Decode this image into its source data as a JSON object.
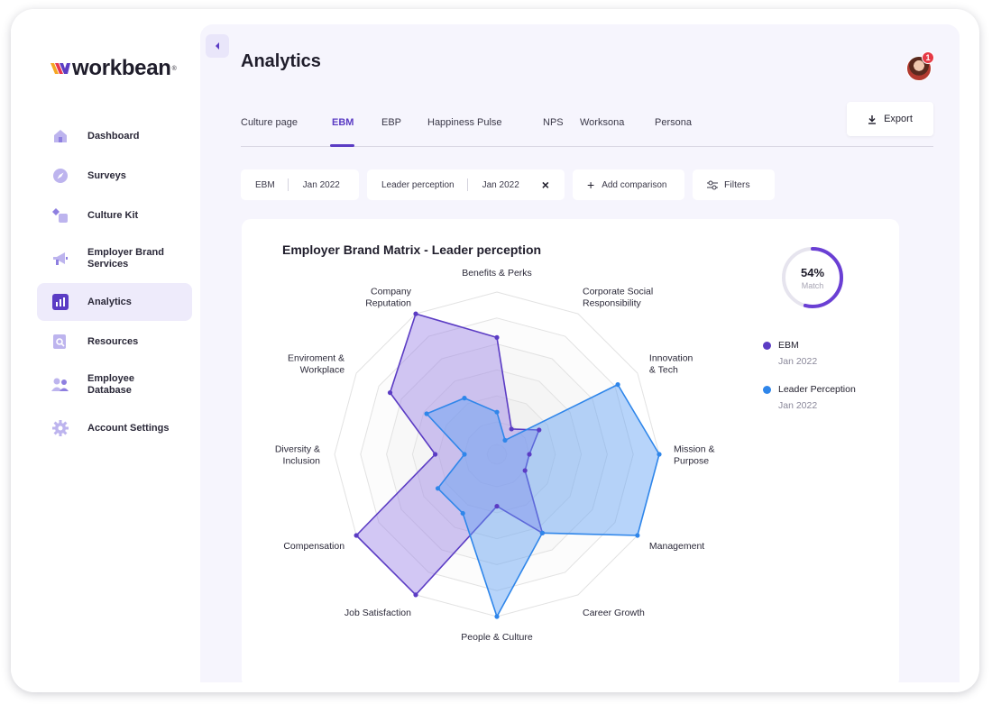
{
  "brand": {
    "name": "workbean",
    "reg": "®"
  },
  "sidebar": {
    "items": [
      {
        "label": "Dashboard",
        "icon": "home-icon",
        "active": false
      },
      {
        "label": "Surveys",
        "icon": "compass-icon",
        "active": false
      },
      {
        "label": "Culture Kit",
        "icon": "shapes-icon",
        "active": false
      },
      {
        "label": "Employer Brand Services",
        "icon": "megaphone-icon",
        "active": false
      },
      {
        "label": "Analytics",
        "icon": "chart-icon",
        "active": true
      },
      {
        "label": "Resources",
        "icon": "document-search-icon",
        "active": false
      },
      {
        "label": "Employee Database",
        "icon": "users-icon",
        "active": false
      },
      {
        "label": "Account Settings",
        "icon": "gear-icon",
        "active": false
      }
    ]
  },
  "header": {
    "title": "Analytics",
    "notification_count": "1",
    "export_label": "Export"
  },
  "tabs": [
    {
      "label": "Culture page",
      "active": false
    },
    {
      "label": "EBM",
      "active": true
    },
    {
      "label": "EBP",
      "active": false
    },
    {
      "label": "Happiness Pulse",
      "active": false
    },
    {
      "label": "NPS",
      "active": false
    },
    {
      "label": "Worksona",
      "active": false
    },
    {
      "label": "Persona",
      "active": false
    }
  ],
  "filters": {
    "chip1": {
      "name": "EBM",
      "date": "Jan 2022"
    },
    "chip2": {
      "name": "Leader perception",
      "date": "Jan 2022",
      "close": "×"
    },
    "add_comparison": "Add comparison",
    "filters_label": "Filters"
  },
  "match": {
    "percent": "54%",
    "label": "Match",
    "value": 0.54
  },
  "legend": [
    {
      "name": "EBM",
      "date": "Jan 2022",
      "color": "#5b3cc4"
    },
    {
      "name": "Leader Perception",
      "date": "Jan 2022",
      "color": "#2f86ea"
    }
  ],
  "chart_data": {
    "type": "radar",
    "title": "Employer Brand Matrix - Leader perception",
    "axes": [
      "Benefits & Perks",
      "Corporate Social\nResponsibility",
      "Innovation\n& Tech",
      "Mission &\nPurpose",
      "Management",
      "Career Growth",
      "People & Culture",
      "Job Satisfaction",
      "Compensation",
      "Diversity &\nInclusion",
      "Enviroment &\nWorkplace",
      "Company\nReputation"
    ],
    "max": 10,
    "series": [
      {
        "name": "EBM",
        "color": "#5b3cc4",
        "fill": "rgba(155,130,230,0.45)",
        "values": [
          7.2,
          1.8,
          3.0,
          2.0,
          2.0,
          5.6,
          3.2,
          10.0,
          10.0,
          3.8,
          7.6,
          10.0
        ]
      },
      {
        "name": "Leader Perception",
        "color": "#2f86ea",
        "fill": "rgba(95,160,245,0.45)",
        "values": [
          2.6,
          1.0,
          8.6,
          10.0,
          10.0,
          5.6,
          10.0,
          4.2,
          4.2,
          2.0,
          5.0,
          4.0
        ]
      }
    ]
  }
}
